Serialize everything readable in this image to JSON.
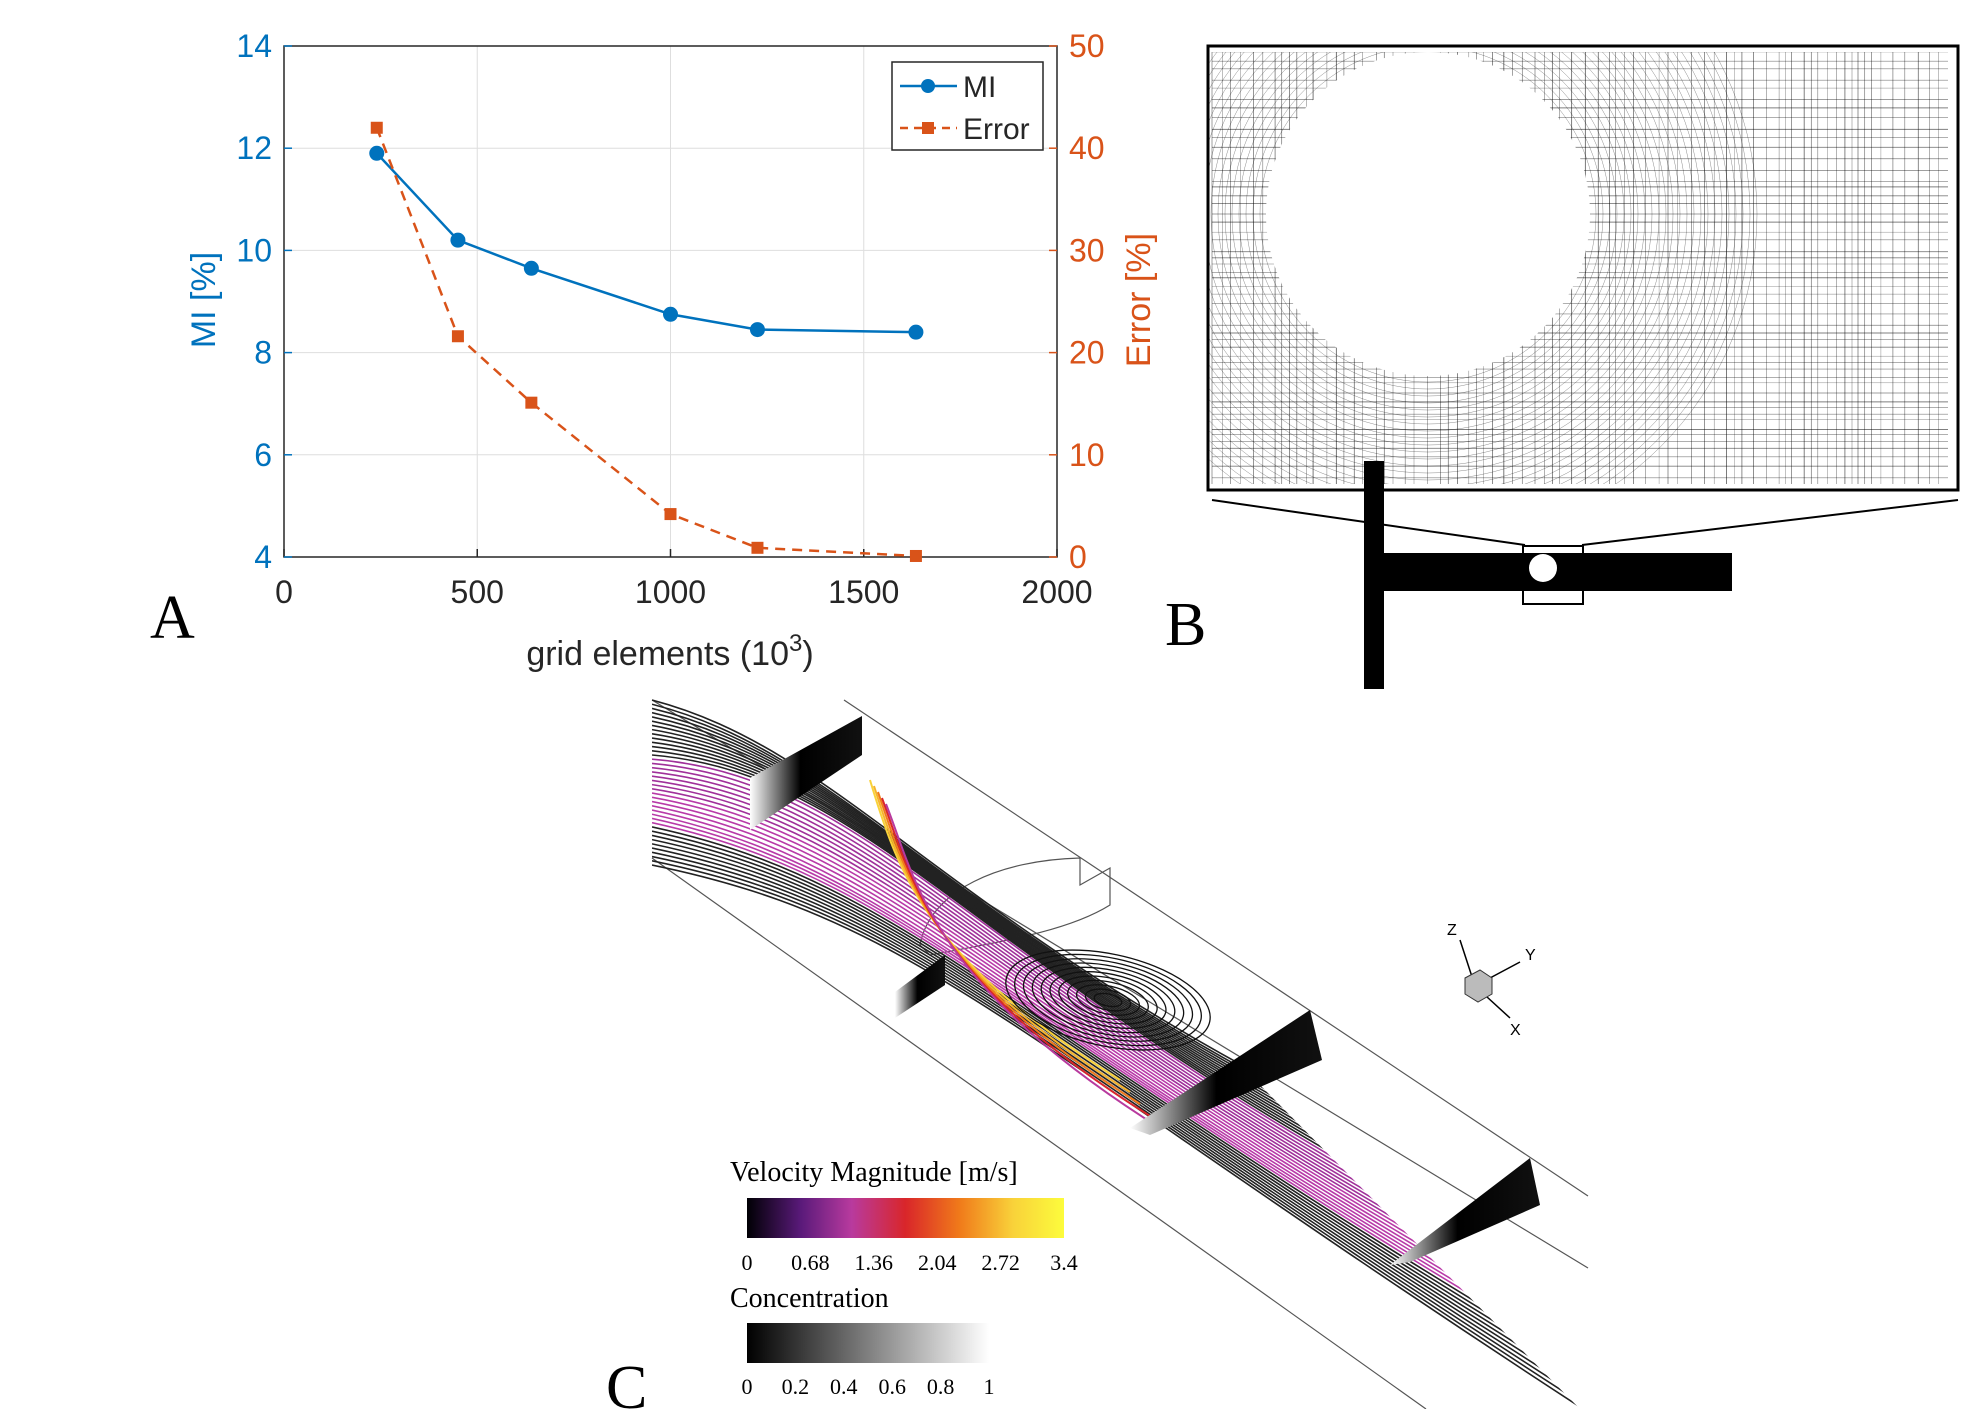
{
  "panels": {
    "a": "A",
    "b": "B",
    "c": "C"
  },
  "chart_data": {
    "type": "line",
    "xlabel": "grid elements (10",
    "xlabel_sup": "3",
    "xlabel_close": ")",
    "ylabel_left": "MI [%]",
    "ylabel_right": "Error [%]",
    "xlim": [
      0,
      2000
    ],
    "ylim_left": [
      4,
      14
    ],
    "ylim_right": [
      0,
      50
    ],
    "xticks": [
      0,
      500,
      1000,
      1500,
      2000
    ],
    "yticks_left": [
      4,
      6,
      8,
      10,
      12,
      14
    ],
    "yticks_right": [
      0,
      10,
      20,
      30,
      40,
      50
    ],
    "grid": true,
    "legend_position": "top-right",
    "x": [
      240,
      450,
      640,
      1000,
      1225,
      1635
    ],
    "series": [
      {
        "name": "MI",
        "axis": "left",
        "style": "solid",
        "marker": "circle",
        "color": "#0072BD",
        "values": [
          11.9,
          10.2,
          9.65,
          8.75,
          8.45,
          8.4
        ]
      },
      {
        "name": "Error",
        "axis": "right",
        "style": "dashed",
        "marker": "square",
        "color": "#D95319",
        "values": [
          42,
          21.6,
          15.1,
          4.2,
          0.9,
          0.1
        ]
      }
    ]
  },
  "colorbars": {
    "velocity": {
      "title": "Velocity Magnitude [m/s]",
      "ticks": [
        "0",
        "0.68",
        "1.36",
        "2.04",
        "2.72",
        "3.4"
      ],
      "colors": [
        "#000004",
        "#5a1a7a",
        "#b83a9e",
        "#d9262a",
        "#f07a1a",
        "#f9d23a",
        "#fcfc3c"
      ]
    },
    "concentration": {
      "title": "Concentration",
      "ticks": [
        "0",
        "0.2",
        "0.4",
        "0.6",
        "0.8",
        "1"
      ],
      "colors": [
        "#000000",
        "#ffffff"
      ]
    }
  },
  "triad": {
    "z": "Z",
    "y": "Y",
    "x": "X"
  }
}
